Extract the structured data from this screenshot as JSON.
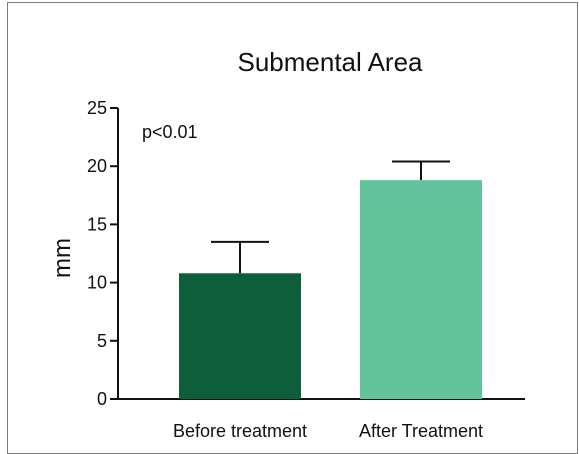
{
  "chart_data": {
    "type": "bar",
    "title": "Submental Area",
    "ylabel": "mm",
    "xlabel": "",
    "annotation": "p<0.01",
    "categories": [
      "Before treatment",
      "After Treatment"
    ],
    "values": [
      10.8,
      18.8
    ],
    "error_upper": [
      13.5,
      20.4
    ],
    "colors": [
      "#0d5f3c",
      "#63c39d"
    ],
    "ylim": [
      0,
      25
    ],
    "yticks": [
      0,
      5,
      10,
      15,
      20,
      25
    ],
    "grid": false,
    "legend": "none"
  }
}
